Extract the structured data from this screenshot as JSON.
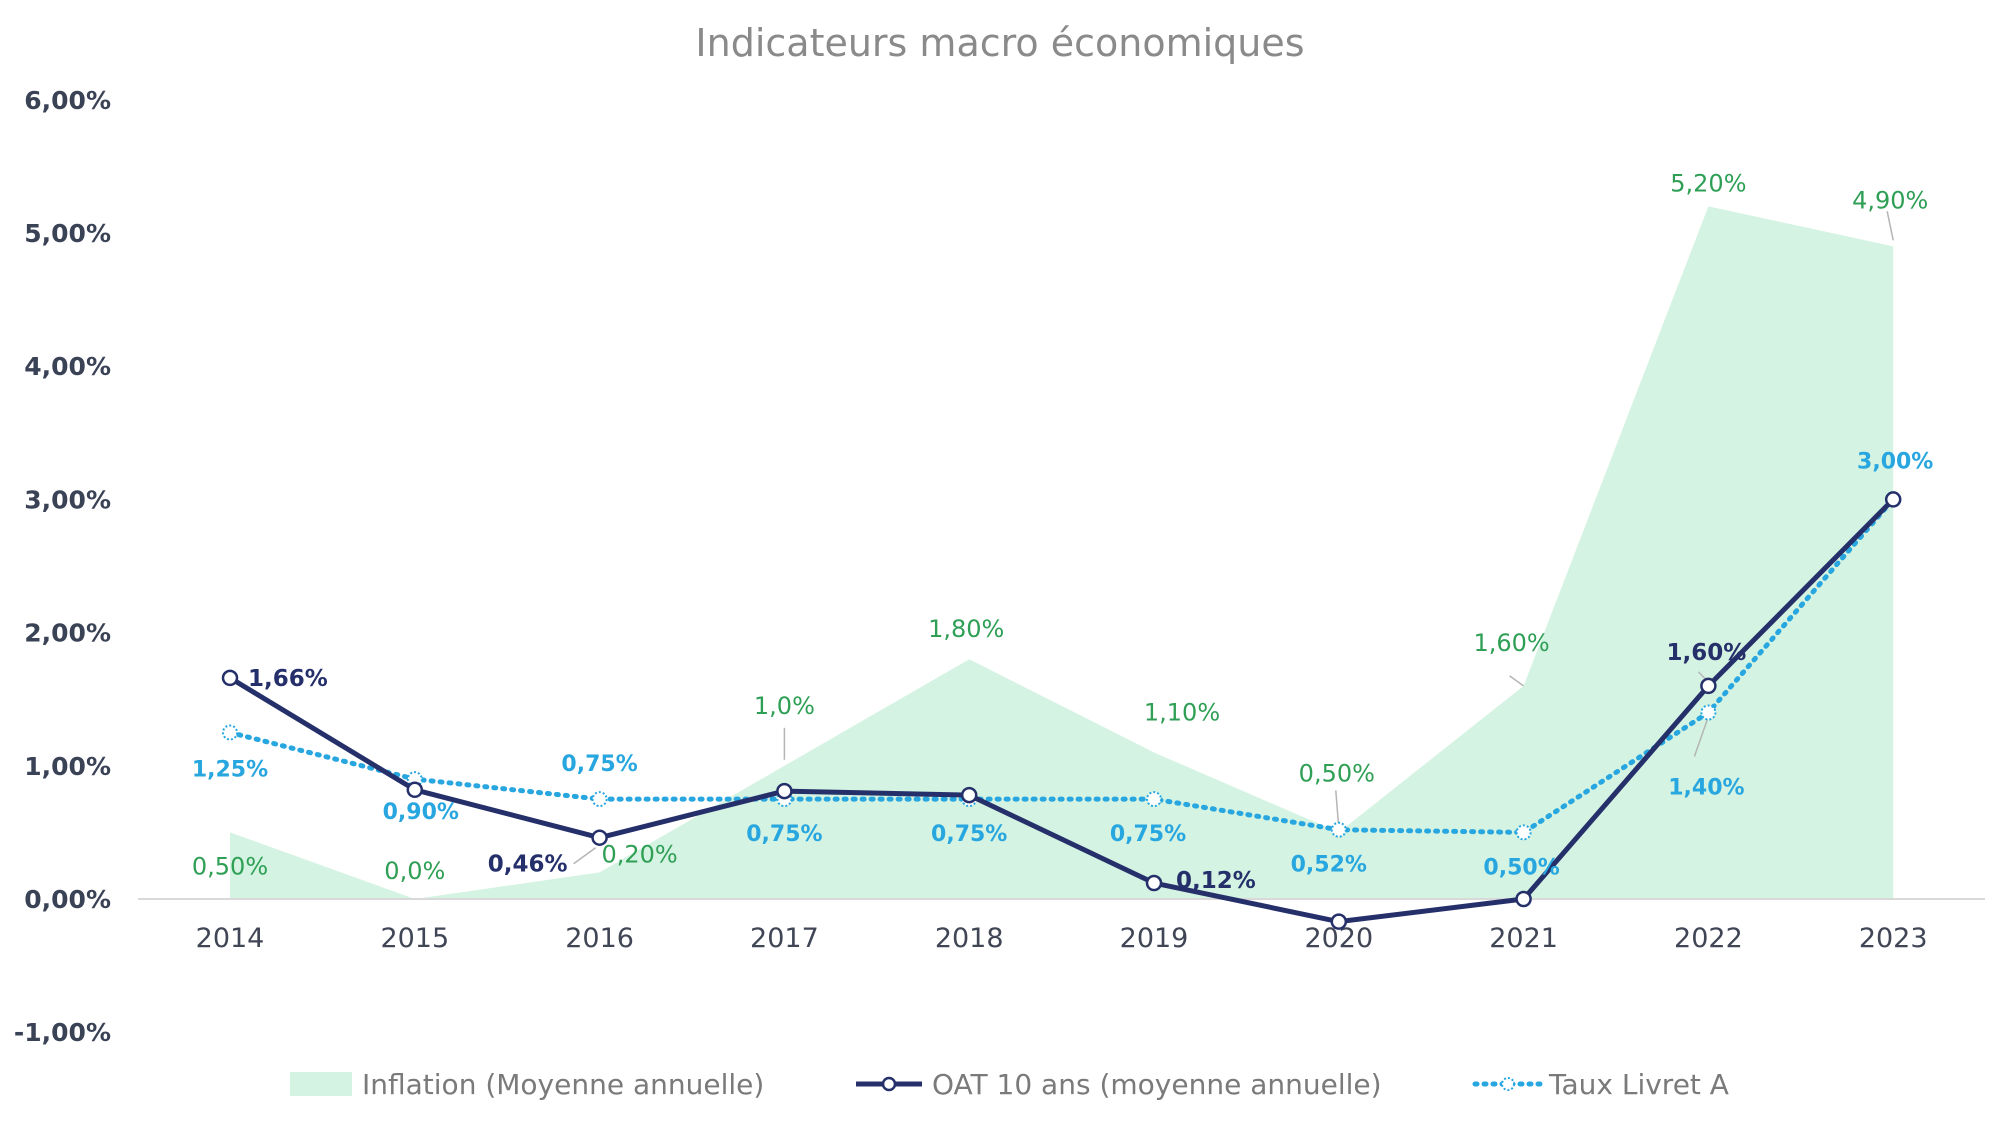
{
  "chart_data": {
    "type": "area",
    "title": "Indicateurs macro économiques",
    "categories": [
      "2014",
      "2015",
      "2016",
      "2017",
      "2018",
      "2019",
      "2020",
      "2021",
      "2022",
      "2023"
    ],
    "ylim": [
      -1,
      6
    ],
    "yticks": [
      6,
      5,
      4,
      3,
      2,
      1,
      0,
      -1
    ],
    "ytick_labels": [
      "6,00%",
      "5,00%",
      "4,00%",
      "3,00%",
      "2,00%",
      "1,00%",
      "0,00%",
      "-1,00%"
    ],
    "grid": false,
    "legend_position": "bottom",
    "series": [
      {
        "name": "Inflation (Moyenne annuelle)",
        "kind": "area",
        "color": "#d4f3e2",
        "label_color": "#2e9f55",
        "values": [
          0.5,
          0.0,
          0.2,
          1.0,
          1.8,
          1.1,
          0.5,
          1.6,
          5.2,
          4.9
        ],
        "labels": [
          "0,50%",
          "0,0%",
          "0,20%",
          "1,0%",
          "1,80%",
          "1,10%",
          "0,50%",
          "1,60%",
          "5,20%",
          "4,90%"
        ]
      },
      {
        "name": "OAT 10 ans (moyenne annuelle)",
        "kind": "line",
        "color": "#25306b",
        "label_color": "#25306b",
        "values": [
          1.66,
          0.82,
          0.46,
          0.81,
          0.78,
          0.12,
          -0.17,
          0.0,
          1.6,
          3.0
        ],
        "labels": [
          "1,66%",
          "",
          "0,46%",
          "",
          "",
          "0,12%",
          "",
          "",
          "1,60%",
          ""
        ]
      },
      {
        "name": "Taux Livret A",
        "kind": "dotted-line",
        "color": "#27a6df",
        "label_color": "#27a6df",
        "values": [
          1.25,
          0.9,
          0.75,
          0.75,
          0.75,
          0.75,
          0.52,
          0.5,
          1.4,
          3.0
        ],
        "labels": [
          "1,25%",
          "0,90%",
          "0,75%",
          "0,75%",
          "0,75%",
          "0,75%",
          "0,52%",
          "0,50%",
          "1,40%",
          "3,00%"
        ]
      }
    ]
  }
}
